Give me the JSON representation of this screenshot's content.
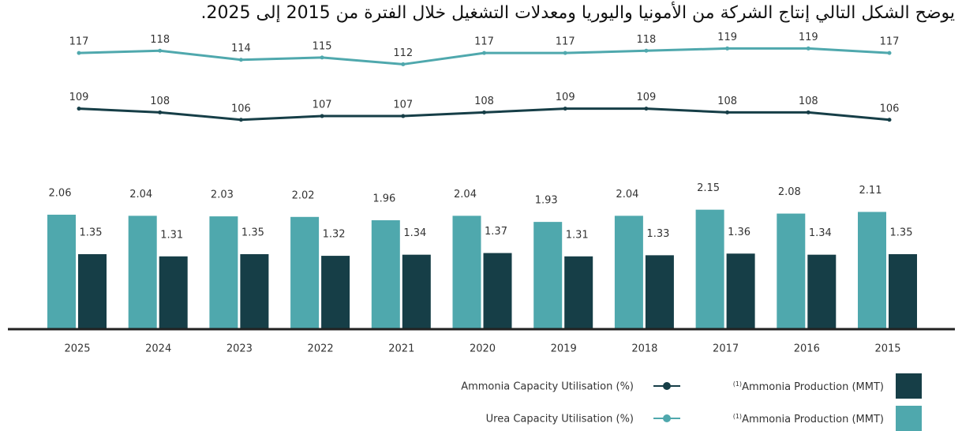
{
  "chart_data": {
    "type": "bar",
    "title": "يوضح الشكل التالي إنتاج الشركة من الأمونيا واليوريا ومعدلات التشغيل خلال الفترة من 2015 إلى 2025.",
    "categories": [
      "2025",
      "2024",
      "2023",
      "2022",
      "2021",
      "2020",
      "2019",
      "2018",
      "2017",
      "2016",
      "2015"
    ],
    "ylim": [
      0,
      2.5
    ],
    "series": [
      {
        "name": "Ammonia Production (MMT)",
        "note": "(1)",
        "kind": "bar",
        "color": "#4fa8ad",
        "values": [
          2.06,
          2.04,
          2.03,
          2.02,
          1.96,
          2.04,
          1.93,
          2.04,
          2.15,
          2.08,
          2.11
        ]
      },
      {
        "name": "Ammonia Production (MMT)",
        "note": "(1)",
        "kind": "bar",
        "color": "#163e47",
        "values": [
          1.35,
          1.31,
          1.35,
          1.32,
          1.34,
          1.37,
          1.31,
          1.33,
          1.36,
          1.34,
          1.35
        ]
      },
      {
        "name": "Urea Capacity Utilisation (%)",
        "kind": "line",
        "color": "#4fa8ad",
        "ylim": [
          102,
          130
        ],
        "values": [
          117,
          118,
          114,
          115,
          112,
          117,
          117,
          118,
          119,
          119,
          117
        ]
      },
      {
        "name": "Ammonia Capacity Utilisation (%)",
        "kind": "line",
        "color": "#163e47",
        "ylim": [
          100,
          117
        ],
        "values": [
          109,
          108,
          106,
          107,
          107,
          108,
          109,
          109,
          108,
          108,
          106
        ]
      }
    ]
  }
}
